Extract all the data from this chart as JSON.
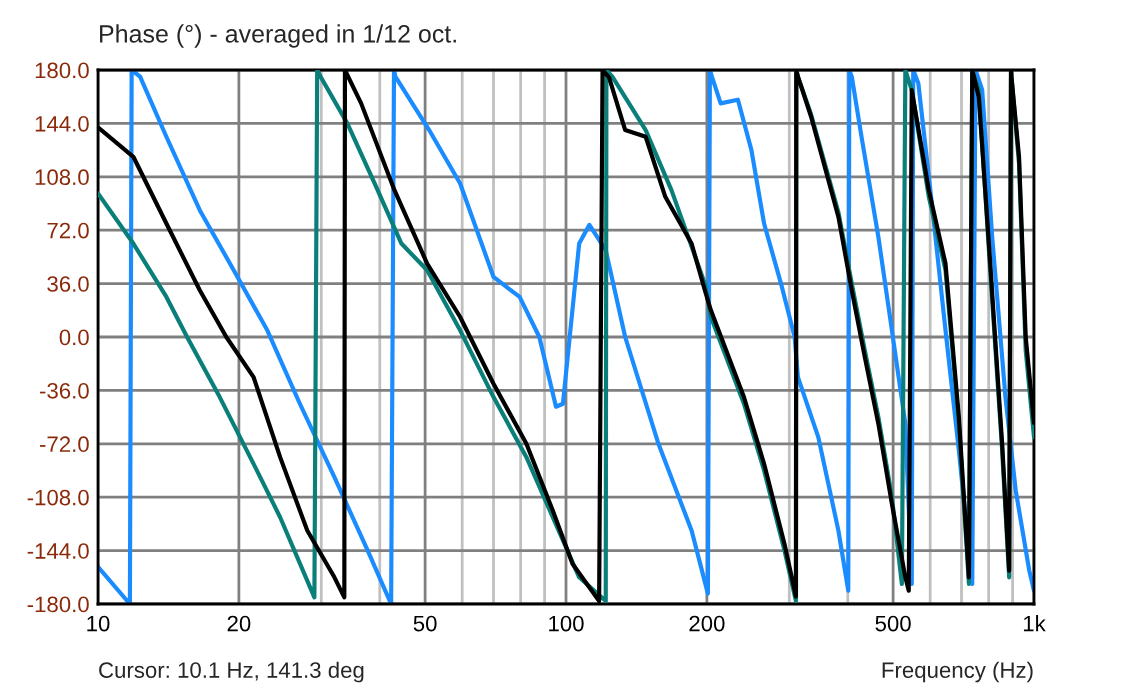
{
  "chart_data": {
    "type": "line",
    "title": "Phase (°) - averaged in 1/12 oct.",
    "xlabel": "Frequency (Hz)",
    "annotations": [
      "Cursor: 10.1 Hz, 141.3 deg"
    ],
    "log": "x",
    "grid": true,
    "marker": "none",
    "line_style": "solid",
    "xlim": [
      10,
      1000
    ],
    "xticks": [
      10,
      20,
      {
        "value": 30,
        "label": null
      },
      {
        "value": 40,
        "label": null
      },
      50,
      {
        "value": 60,
        "label": null
      },
      {
        "value": 70,
        "label": null
      },
      {
        "value": 80,
        "label": null
      },
      {
        "value": 90,
        "label": null
      },
      100,
      200,
      {
        "value": 300,
        "label": null
      },
      {
        "value": 400,
        "label": null
      },
      500,
      {
        "value": 600,
        "label": null
      },
      {
        "value": 700,
        "label": null
      },
      {
        "value": 800,
        "label": null
      },
      {
        "value": 900,
        "label": null
      },
      {
        "value": 1000,
        "label": "1k"
      }
    ],
    "ylim": [
      -180,
      180
    ],
    "yticks": [
      {
        "value": 180,
        "label": "180.0"
      },
      {
        "value": 144,
        "label": "144.0"
      },
      {
        "value": 108,
        "label": "108.0"
      },
      {
        "value": 72,
        "label": "72.0"
      },
      {
        "value": 36,
        "label": "36.0"
      },
      {
        "value": 0,
        "label": "0.0"
      },
      {
        "value": -36,
        "label": "-36.0"
      },
      {
        "value": -72,
        "label": "-72.0"
      },
      {
        "value": -108,
        "label": "-108.0"
      },
      {
        "value": -144,
        "label": "-144.0"
      },
      {
        "value": -180,
        "label": "-180.0"
      }
    ],
    "series": [
      {
        "color": "#1a8cff",
        "x": [
          10,
          11.7,
          11.8,
          12.3,
          14.0,
          16.5,
          19.5,
          23.0,
          27.0,
          32.0,
          37.7,
          42.3,
          42.9,
          43.2,
          51,
          59.4,
          70,
          79.6,
          87.7,
          95.2,
          98.5,
          106.7,
          112.2,
          121.6,
          133.8,
          157.6,
          185.5,
          201,
          203,
          205,
          214,
          233,
          249,
          265,
          288,
          308,
          313,
          346,
          382,
          401,
          403,
          408,
          428,
          465,
          497,
          531,
          548,
          552,
          566,
          605,
          647,
          691,
          738,
          750,
          775,
          814,
          869,
          914,
          977,
          1000
        ],
        "values": [
          -155,
          -180,
          180,
          175.5,
          135,
          85.5,
          45,
          4.5,
          -45,
          -94.5,
          -144,
          -180,
          180,
          175.5,
          139.5,
          103.5,
          40.5,
          27,
          0,
          -47,
          -45,
          63,
          75.6,
          58.5,
          0,
          -72,
          -130.5,
          -173,
          180,
          175.5,
          157.5,
          160,
          126,
          76.5,
          36,
          0,
          -27,
          -67.5,
          -130.5,
          -171,
          180,
          175.5,
          135,
          67.5,
          4.5,
          -58.5,
          -166.5,
          180,
          171,
          90,
          4.5,
          -76.5,
          -166.5,
          180,
          166.5,
          67.5,
          -40.5,
          -103.5,
          -157.5,
          -171
        ]
      },
      {
        "color": "#0a7f7a",
        "x": [
          10,
          11.9,
          14.0,
          15.5,
          18.2,
          21.5,
          24.5,
          29.0,
          29.4,
          29.9,
          34.1,
          39,
          44.5,
          50.5,
          59.4,
          70,
          82.3,
          93.7,
          106.7,
          121.6,
          122,
          125.6,
          148,
          168,
          198,
          204,
          240,
          265,
          293,
          310,
          310.5,
          313,
          334,
          382,
          408,
          435,
          465,
          497,
          522,
          531,
          548,
          596,
          647,
          691,
          726,
          738,
          762,
          801,
          855,
          885,
          893,
          895,
          929,
          960,
          1000
        ],
        "values": [
          96.8,
          63,
          27,
          0,
          -40.5,
          -85.5,
          -121.5,
          -175.5,
          180,
          175.5,
          144,
          103.5,
          63,
          45,
          4.5,
          -40.5,
          -81,
          -121.5,
          -162,
          -178,
          180,
          175.5,
          139.5,
          99,
          36,
          13.5,
          -45,
          -90,
          -144,
          -178,
          180,
          175.5,
          150,
          84,
          36,
          -9,
          -54,
          -108,
          -166.5,
          180,
          166.5,
          94.5,
          45,
          -58.5,
          -166.5,
          180,
          166.5,
          58.5,
          -76.5,
          -162,
          180,
          175.5,
          117,
          -9,
          -67.5
        ]
      },
      {
        "color": "#000000",
        "x": [
          10,
          11.9,
          14.0,
          16.5,
          18.8,
          21.5,
          24.5,
          28.0,
          32.0,
          33.6,
          33.7,
          36.5,
          43.0,
          50.5,
          59.4,
          70.0,
          82.3,
          93.7,
          103.3,
          117.7,
          119.7,
          123.6,
          133.8,
          148,
          163,
          185.5,
          198,
          204,
          240,
          265,
          293,
          310,
          310.5,
          313,
          334,
          382,
          408,
          435,
          465,
          497,
          531,
          540,
          548,
          596,
          647,
          691,
          726,
          738,
          762,
          801,
          855,
          885,
          893,
          895,
          929,
          960,
          1000
        ],
        "values": [
          141.3,
          121.5,
          76.5,
          31.5,
          0,
          -27,
          -81,
          -130.5,
          -162,
          -175.5,
          180,
          157.5,
          99,
          49.5,
          13.5,
          -31.5,
          -72,
          -117,
          -153,
          -178,
          180,
          175,
          139.5,
          135,
          94.5,
          63,
          31.5,
          18,
          -40.5,
          -85.5,
          -139.5,
          -175,
          180,
          175.5,
          148.5,
          81,
          31.5,
          -13.5,
          -58.5,
          -112.5,
          -162,
          -171,
          166.5,
          99,
          49.5,
          -54,
          -162,
          180,
          162,
          63,
          -72,
          -157.5,
          180,
          175.5,
          121.5,
          0,
          -58
        ]
      }
    ]
  }
}
